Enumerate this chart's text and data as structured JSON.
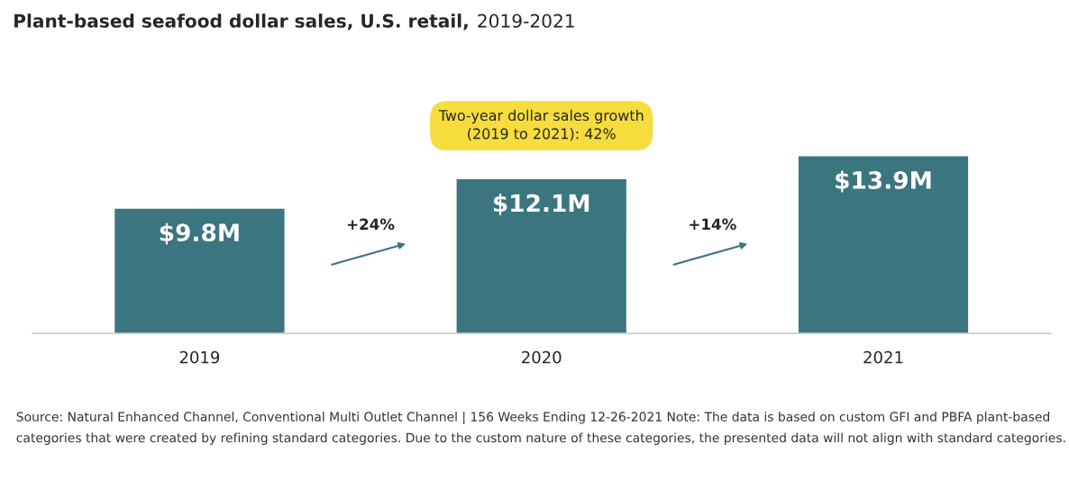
{
  "chart_data": {
    "type": "bar",
    "title": "Plant-based seafood dollar sales, U.S. retail, 2019-2021",
    "categories": [
      "2019",
      "2020",
      "2021"
    ],
    "values": [
      9.8,
      12.1,
      13.9
    ],
    "value_labels": [
      "$9.8M",
      "$12.1M",
      "$13.9M"
    ],
    "color": "#3b7580",
    "grid": false,
    "legend": false,
    "annotations": [
      "Two-year dollar sales growth\n(2019 to 2021): 42%",
      "+24%",
      "+14%",
      "Source: Natural Enhanced Channel, Conventional Multi Outlet Channel | 156 Weeks Ending 12-26-2021 Note: The data is based on custom GFI and PBFA plant-based categories that were created by refining standard categories. Due to the custom nature of these categories, the presented data will not align with standard categories."
    ]
  }
}
